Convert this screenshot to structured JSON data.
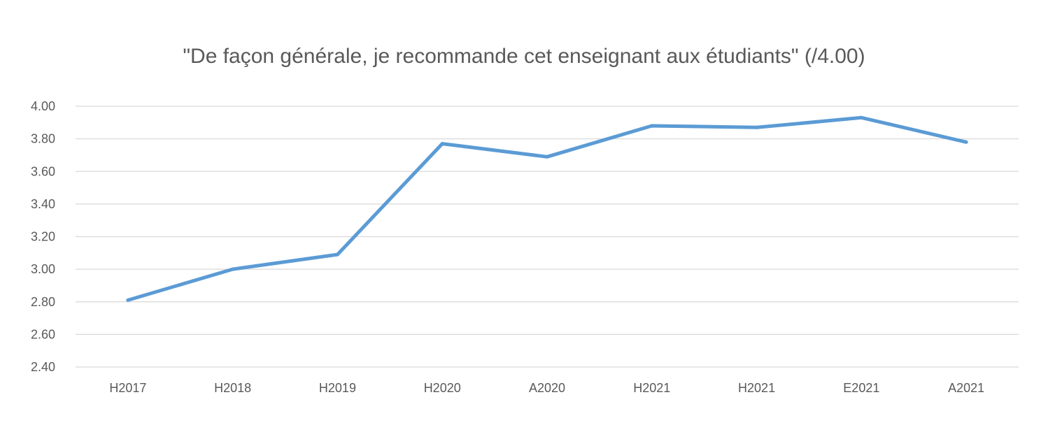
{
  "chart_data": {
    "type": "line",
    "title": "\"De façon générale, je recommande cet enseignant aux étudiants\" (/4.00)",
    "xlabel": "",
    "ylabel": "",
    "categories": [
      "H2017",
      "H2018",
      "H2019",
      "H2020",
      "A2020",
      "H2021",
      "H2021",
      "E2021",
      "A2021"
    ],
    "series": [
      {
        "values": [
          2.81,
          3.0,
          3.09,
          3.77,
          3.69,
          3.88,
          3.87,
          3.93,
          3.78
        ]
      }
    ],
    "ylim": [
      2.4,
      4.0
    ],
    "y_ticks": [
      "2.40",
      "2.60",
      "2.80",
      "3.00",
      "3.20",
      "3.40",
      "3.60",
      "3.80",
      "4.00"
    ],
    "grid": true,
    "legend": "none",
    "colors": {
      "series": "#5b9bd5",
      "grid": "#d9d9d9",
      "text": "#595959"
    }
  }
}
